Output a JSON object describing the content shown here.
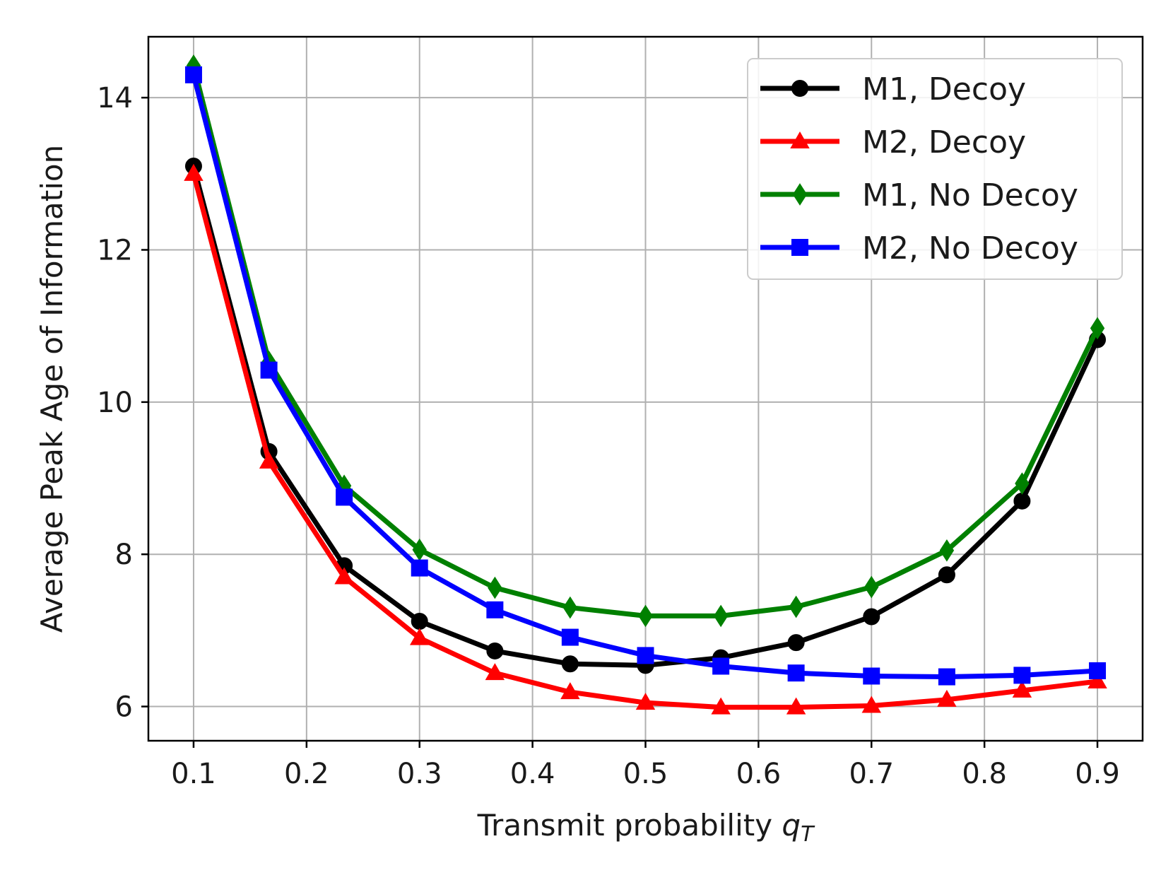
{
  "chart_data": {
    "type": "line",
    "title": "",
    "xlabel": "Transmit probability ",
    "xlabel_symbol": "q",
    "xlabel_subscript": "T",
    "ylabel": "Average Peak Age of Information",
    "xlim": [
      0.06,
      0.94
    ],
    "ylim": [
      5.55,
      14.8
    ],
    "xticks": [
      0.1,
      0.2,
      0.3,
      0.4,
      0.5,
      0.6,
      0.7,
      0.8,
      0.9
    ],
    "xtick_labels": [
      "0.1",
      "0.2",
      "0.3",
      "0.4",
      "0.5",
      "0.6",
      "0.7",
      "0.8",
      "0.9"
    ],
    "yticks": [
      6,
      8,
      10,
      12,
      14
    ],
    "ytick_labels": [
      "6",
      "8",
      "10",
      "12",
      "14"
    ],
    "grid": true,
    "legend_position": "top-right",
    "x": [
      0.1,
      0.1667,
      0.2333,
      0.3,
      0.3667,
      0.4333,
      0.5,
      0.5667,
      0.6333,
      0.7,
      0.7667,
      0.8333,
      0.9
    ],
    "series": [
      {
        "name": "M1, Decoy",
        "color": "#000000",
        "marker": "circle",
        "values": [
          13.1,
          9.35,
          7.85,
          7.12,
          6.73,
          6.56,
          6.54,
          6.64,
          6.84,
          7.18,
          7.73,
          8.7,
          10.82
        ]
      },
      {
        "name": "M2, Decoy",
        "color": "#ff0000",
        "marker": "triangle",
        "values": [
          13.0,
          9.22,
          7.7,
          6.9,
          6.44,
          6.19,
          6.05,
          5.99,
          5.99,
          6.01,
          6.09,
          6.21,
          6.33
        ]
      },
      {
        "name": "M1, No Decoy",
        "color": "#008000",
        "marker": "diamond",
        "values": [
          14.42,
          10.53,
          8.9,
          8.06,
          7.56,
          7.3,
          7.19,
          7.19,
          7.31,
          7.57,
          8.05,
          8.93,
          10.97
        ]
      },
      {
        "name": "M2, No Decoy",
        "color": "#0000ff",
        "marker": "square",
        "values": [
          14.3,
          10.42,
          8.75,
          7.82,
          7.27,
          6.91,
          6.67,
          6.53,
          6.44,
          6.4,
          6.39,
          6.41,
          6.47
        ]
      }
    ]
  }
}
